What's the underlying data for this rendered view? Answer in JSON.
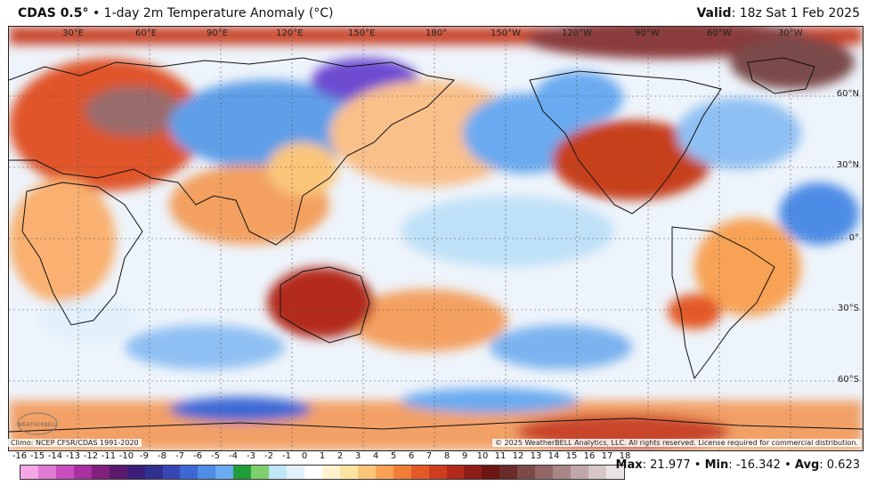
{
  "header": {
    "product": "CDAS 0.5",
    "degree": "°",
    "separator": " • ",
    "description": "1-day 2m Temperature Anomaly (°C)",
    "valid_label": "Valid",
    "valid_time": ": 18z Sat 1 Feb 2025"
  },
  "map": {
    "longitude_labels": [
      "30°E",
      "60°E",
      "90°E",
      "120°E",
      "150°E",
      "180°",
      "150°W",
      "120°W",
      "90°W",
      "60°W",
      "30°W"
    ],
    "latitude_labels": [
      "60°N",
      "30°N",
      "0°",
      "30°S",
      "60°S"
    ],
    "watermark_text": "WEATHERBELL"
  },
  "footer": {
    "climo": "Climo: NCEP CFSR/CDAS 1991-2020",
    "copyright": "© 2025 WeatherBELL Analytics, LLC. All rights reserved. License required for commercial distribution."
  },
  "colorbar": {
    "ticks": [
      "-16",
      "-15",
      "-14",
      "-13",
      "-12",
      "-11",
      "-10",
      "-9",
      "-8",
      "-7",
      "-6",
      "-5",
      "-4",
      "-3",
      "-2",
      "-1",
      "0",
      "1",
      "2",
      "3",
      "4",
      "5",
      "6",
      "7",
      "8",
      "9",
      "10",
      "11",
      "12",
      "13",
      "14",
      "15",
      "16",
      "17",
      "18"
    ],
    "colors": [
      "#f4a6e6",
      "#e07ad2",
      "#c94fbe",
      "#a9309f",
      "#82207f",
      "#5a1a6e",
      "#3b1e7a",
      "#30308f",
      "#3846b4",
      "#3d68d4",
      "#4e8ce6",
      "#6aaaf0",
      "#1f9e3a",
      "#7fd06c",
      "#bfe6f7",
      "#e2f1fb",
      "#ffffff",
      "#fff2cf",
      "#fde3a1",
      "#fbc67a",
      "#f8a254",
      "#f07e37",
      "#e45a27",
      "#cf3d1f",
      "#b32a1c",
      "#8e1c18",
      "#6d1714",
      "#6a2b2b",
      "#7d4848",
      "#926666",
      "#a98686",
      "#c0a7a7",
      "#d6c6c6",
      "#ebe3e3"
    ]
  },
  "stats": {
    "max_label": "Max",
    "max_value": ": 21.977",
    "min_label": "Min",
    "min_value": ": -16.342",
    "avg_label": "Avg",
    "avg_value": ": 0.623",
    "separator": " • "
  }
}
